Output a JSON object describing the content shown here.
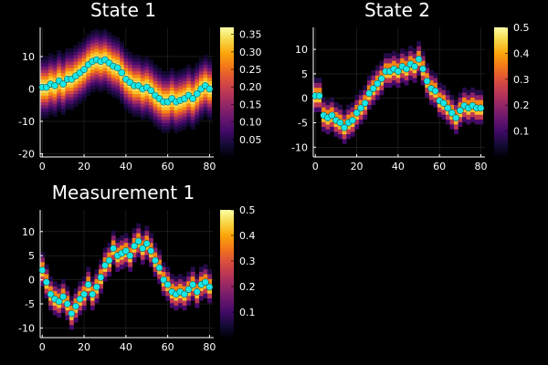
{
  "chart_data": [
    {
      "type": "heatmap",
      "title": "State 1",
      "xlabel": "",
      "ylabel": "",
      "xlim": [
        -1,
        82
      ],
      "ylim": [
        -21,
        19
      ],
      "xticks": [
        0,
        20,
        40,
        60,
        80
      ],
      "yticks": [
        -20,
        -10,
        0,
        10
      ],
      "colorbar": {
        "range": [
          0,
          0.37
        ],
        "ticks": [
          0.05,
          0.1,
          0.15,
          0.2,
          0.25,
          0.3,
          0.35
        ]
      },
      "heat_spread": 4,
      "heat_max": 0.37,
      "points": [
        [
          0,
          0.5
        ],
        [
          2,
          0.5
        ],
        [
          4,
          1.5
        ],
        [
          6,
          1
        ],
        [
          8,
          2.5
        ],
        [
          10,
          1.5
        ],
        [
          12,
          3
        ],
        [
          14,
          3
        ],
        [
          16,
          4
        ],
        [
          18,
          5
        ],
        [
          20,
          6
        ],
        [
          22,
          7.5
        ],
        [
          24,
          8.5
        ],
        [
          26,
          9
        ],
        [
          28,
          8.5
        ],
        [
          30,
          9
        ],
        [
          32,
          8
        ],
        [
          34,
          7
        ],
        [
          36,
          6.5
        ],
        [
          38,
          5
        ],
        [
          40,
          3
        ],
        [
          42,
          2
        ],
        [
          44,
          1
        ],
        [
          46,
          1
        ],
        [
          48,
          0
        ],
        [
          50,
          0.5
        ],
        [
          52,
          -0.5
        ],
        [
          54,
          -2
        ],
        [
          56,
          -3
        ],
        [
          58,
          -4
        ],
        [
          60,
          -4
        ],
        [
          62,
          -3
        ],
        [
          64,
          -4
        ],
        [
          66,
          -3.5
        ],
        [
          68,
          -3
        ],
        [
          70,
          -2
        ],
        [
          72,
          -3
        ],
        [
          74,
          -1.5
        ],
        [
          76,
          0
        ],
        [
          78,
          1
        ],
        [
          80,
          0
        ]
      ]
    },
    {
      "type": "heatmap",
      "title": "State 2",
      "xlabel": "",
      "ylabel": "",
      "xlim": [
        -1,
        82
      ],
      "ylim": [
        -12,
        14.5
      ],
      "xticks": [
        0,
        20,
        40,
        60,
        80
      ],
      "yticks": [
        -10,
        -5,
        0,
        5,
        10
      ],
      "colorbar": {
        "range": [
          0,
          0.5
        ],
        "ticks": [
          0.1,
          0.2,
          0.3,
          0.4,
          0.5
        ]
      },
      "heat_spread": 1.6,
      "heat_max": 0.5,
      "points": [
        [
          0,
          0.5
        ],
        [
          2,
          0.5
        ],
        [
          4,
          -3.5
        ],
        [
          6,
          -4
        ],
        [
          8,
          -3.5
        ],
        [
          10,
          -4.5
        ],
        [
          12,
          -5
        ],
        [
          14,
          -6
        ],
        [
          16,
          -5
        ],
        [
          18,
          -4.5
        ],
        [
          20,
          -3
        ],
        [
          22,
          -2
        ],
        [
          24,
          -1
        ],
        [
          26,
          1
        ],
        [
          28,
          2
        ],
        [
          30,
          3
        ],
        [
          32,
          4
        ],
        [
          34,
          5.5
        ],
        [
          36,
          5.5
        ],
        [
          38,
          6
        ],
        [
          40,
          5.5
        ],
        [
          42,
          6.5
        ],
        [
          44,
          6
        ],
        [
          46,
          7
        ],
        [
          48,
          6.5
        ],
        [
          50,
          8
        ],
        [
          52,
          6
        ],
        [
          54,
          3.5
        ],
        [
          56,
          2
        ],
        [
          58,
          1.5
        ],
        [
          60,
          -0.5
        ],
        [
          62,
          -1
        ],
        [
          64,
          -2
        ],
        [
          66,
          -3
        ],
        [
          68,
          -4
        ],
        [
          70,
          -2.5
        ],
        [
          72,
          -1.5
        ],
        [
          74,
          -2
        ],
        [
          76,
          -1.5
        ],
        [
          78,
          -2
        ],
        [
          80,
          -2
        ]
      ]
    },
    {
      "type": "heatmap",
      "title": "Measurement 1",
      "xlabel": "",
      "ylabel": "",
      "xlim": [
        -1,
        82
      ],
      "ylim": [
        -12,
        14.5
      ],
      "xticks": [
        0,
        20,
        40,
        60,
        80
      ],
      "yticks": [
        -10,
        -5,
        0,
        5,
        10
      ],
      "colorbar": {
        "range": [
          0,
          0.5
        ],
        "ticks": [
          0.1,
          0.2,
          0.3,
          0.4,
          0.5
        ]
      },
      "heat_spread": 1.6,
      "heat_max": 0.5,
      "points": [
        [
          0,
          2
        ],
        [
          2,
          -0.5
        ],
        [
          4,
          -3
        ],
        [
          6,
          -4
        ],
        [
          8,
          -4.5
        ],
        [
          10,
          -3.5
        ],
        [
          12,
          -5
        ],
        [
          14,
          -7
        ],
        [
          16,
          -5.5
        ],
        [
          18,
          -4
        ],
        [
          20,
          -3
        ],
        [
          22,
          -1
        ],
        [
          24,
          -3
        ],
        [
          26,
          -1.5
        ],
        [
          28,
          0.5
        ],
        [
          30,
          3
        ],
        [
          32,
          4
        ],
        [
          34,
          6.5
        ],
        [
          36,
          5
        ],
        [
          38,
          5.5
        ],
        [
          40,
          6
        ],
        [
          42,
          5
        ],
        [
          44,
          7
        ],
        [
          46,
          8
        ],
        [
          48,
          6.5
        ],
        [
          50,
          7.5
        ],
        [
          52,
          6
        ],
        [
          54,
          4
        ],
        [
          56,
          2.5
        ],
        [
          58,
          0
        ],
        [
          60,
          -1
        ],
        [
          62,
          -2.5
        ],
        [
          64,
          -3
        ],
        [
          66,
          -2.5
        ],
        [
          68,
          -3
        ],
        [
          70,
          -2
        ],
        [
          72,
          -1
        ],
        [
          74,
          -2.5
        ],
        [
          76,
          -1
        ],
        [
          78,
          -0.5
        ],
        [
          80,
          -1.5
        ]
      ]
    }
  ],
  "marker_color": "#19e6e6",
  "background": "#000000"
}
